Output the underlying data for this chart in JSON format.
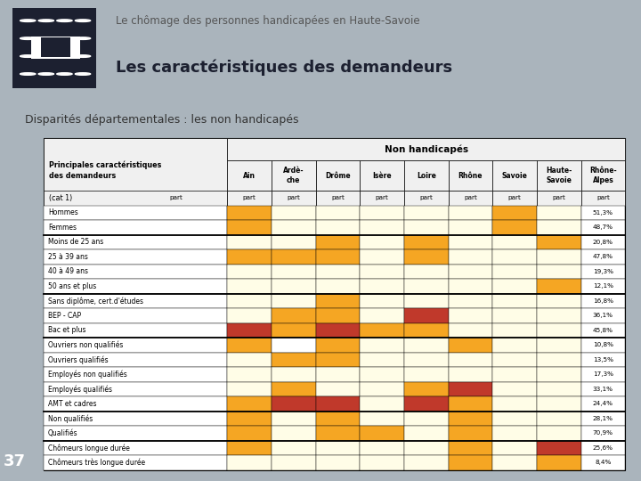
{
  "title_small": "Le chômage des personnes handicapées en Haute-Savoie",
  "title_large": "Les caractéristiques des demandeurs",
  "subtitle": "Disparités départementales : les non handicapés",
  "page_number": "37",
  "bg_color": "#aab4bc",
  "table_header_group": "Non handicapés",
  "dept_names": [
    "Ain",
    "Ardè-\nche",
    "Drôme",
    "Isère",
    "Loire",
    "Rhône",
    "Savoie",
    "Haute-\nSavoie",
    "Rhône-\nAlpes"
  ],
  "row_labels": [
    "Hommes",
    "Femmes",
    "Moins de 25 ans",
    "25 à 39 ans",
    "40 à 49 ans",
    "50 ans et plus",
    "Sans diplôme, cert.d'études",
    "BEP - CAP",
    "Bac et plus",
    "Ouvriers non qualifiés",
    "Ouvriers qualifiés",
    "Employés non qualifiés",
    "Employés qualifiés",
    "AMT et cadres",
    "Non qualifiés",
    "Qualifiés",
    "Chômeurs longue durée",
    "Chômeurs très longue durée"
  ],
  "row_values": [
    "51,3%",
    "48,7%",
    "20,8%",
    "47,8%",
    "19,3%",
    "12,1%",
    "16,8%",
    "36,1%",
    "45,8%",
    "10,8%",
    "13,5%",
    "17,3%",
    "33,1%",
    "24,4%",
    "28,1%",
    "70,9%",
    "25,6%",
    "8,4%"
  ],
  "cell_colors": [
    [
      "#F5A623",
      "#FFFDE7",
      "#FFFDE7",
      "#FFFDE7",
      "#FFFDE7",
      "#FFFDE7",
      "#F5A623",
      "#FFFDE7",
      "white"
    ],
    [
      "#F5A623",
      "#FFFDE7",
      "#FFFDE7",
      "#FFFDE7",
      "#FFFDE7",
      "#FFFDE7",
      "#F5A623",
      "#FFFDE7",
      "white"
    ],
    [
      "#FFFDE7",
      "#FFFDE7",
      "#F5A623",
      "#FFFDE7",
      "#F5A623",
      "#FFFDE7",
      "#FFFDE7",
      "#F5A623",
      "white"
    ],
    [
      "#F5A623",
      "#F5A623",
      "#F5A623",
      "#FFFDE7",
      "#F5A623",
      "#FFFDE7",
      "#FFFDE7",
      "#FFFDE7",
      "white"
    ],
    [
      "#FFFDE7",
      "#FFFDE7",
      "#FFFDE7",
      "#FFFDE7",
      "#FFFDE7",
      "#FFFDE7",
      "#FFFDE7",
      "#FFFDE7",
      "white"
    ],
    [
      "#FFFDE7",
      "#FFFDE7",
      "#FFFDE7",
      "#FFFDE7",
      "#FFFDE7",
      "#FFFDE7",
      "#FFFDE7",
      "#F5A623",
      "white"
    ],
    [
      "#FFFDE7",
      "#FFFDE7",
      "#F5A623",
      "#FFFDE7",
      "#FFFDE7",
      "#FFFDE7",
      "#FFFDE7",
      "#FFFDE7",
      "white"
    ],
    [
      "#FFFDE7",
      "#F5A623",
      "#F5A623",
      "#FFFDE7",
      "#C0392B",
      "#FFFDE7",
      "#FFFDE7",
      "#FFFDE7",
      "white"
    ],
    [
      "#C0392B",
      "#F5A623",
      "#C0392B",
      "#F5A623",
      "#F5A623",
      "#FFFDE7",
      "#FFFDE7",
      "#FFFDE7",
      "white"
    ],
    [
      "#F5A623",
      "#ffffff",
      "#F5A623",
      "#FFFDE7",
      "#FFFDE7",
      "#F5A623",
      "#FFFDE7",
      "#FFFDE7",
      "white"
    ],
    [
      "#FFFDE7",
      "#F5A623",
      "#F5A623",
      "#FFFDE7",
      "#FFFDE7",
      "#FFFDE7",
      "#FFFDE7",
      "#FFFDE7",
      "white"
    ],
    [
      "#FFFDE7",
      "#FFFDE7",
      "#FFFDE7",
      "#FFFDE7",
      "#FFFDE7",
      "#FFFDE7",
      "#FFFDE7",
      "#FFFDE7",
      "white"
    ],
    [
      "#FFFDE7",
      "#F5A623",
      "#FFFDE7",
      "#FFFDE7",
      "#F5A623",
      "#C0392B",
      "#FFFDE7",
      "#FFFDE7",
      "white"
    ],
    [
      "#F5A623",
      "#C0392B",
      "#C0392B",
      "#FFFDE7",
      "#C0392B",
      "#F5A623",
      "#FFFDE7",
      "#FFFDE7",
      "white"
    ],
    [
      "#F5A623",
      "#FFFDE7",
      "#F5A623",
      "#FFFDE7",
      "#FFFDE7",
      "#F5A623",
      "#FFFDE7",
      "#FFFDE7",
      "white"
    ],
    [
      "#F5A623",
      "#FFFDE7",
      "#F5A623",
      "#F5A623",
      "#FFFDE7",
      "#F5A623",
      "#FFFDE7",
      "#FFFDE7",
      "white"
    ],
    [
      "#F5A623",
      "#FFFDE7",
      "#FFFDE7",
      "#FFFDE7",
      "#FFFDE7",
      "#F5A623",
      "#FFFDE7",
      "#C0392B",
      "white"
    ],
    [
      "#FFFDE7",
      "#FFFDE7",
      "#FFFDE7",
      "#FFFDE7",
      "#FFFDE7",
      "#F5A623",
      "#FFFDE7",
      "#F5A623",
      "white"
    ]
  ],
  "separator_rows": [
    2,
    6,
    9,
    14,
    16
  ]
}
